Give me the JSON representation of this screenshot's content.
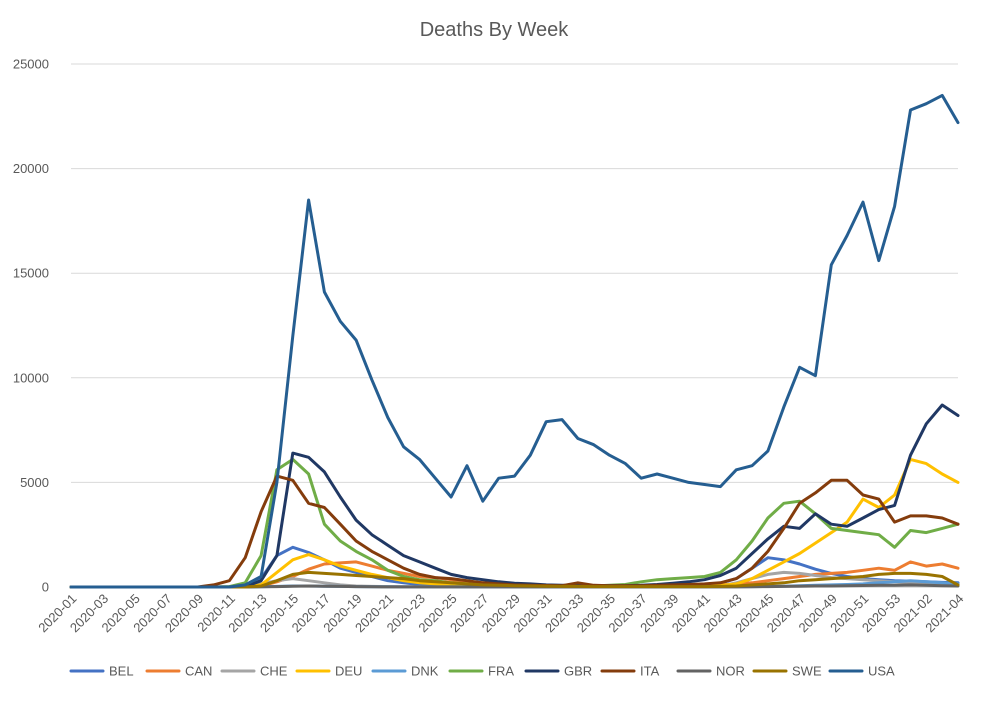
{
  "chart_data": {
    "type": "line",
    "title": "Deaths By Week",
    "xlabel": "",
    "ylabel": "",
    "ylim": [
      0,
      25000
    ],
    "yticks": [
      0,
      5000,
      10000,
      15000,
      20000,
      25000
    ],
    "ytick_labels": [
      "0",
      "5000",
      "10000",
      "15000",
      "20000",
      "25000"
    ],
    "grid": "horizontal",
    "legend": "bottom",
    "x": [
      "2020-01",
      "2020-02",
      "2020-03",
      "2020-04",
      "2020-05",
      "2020-06",
      "2020-07",
      "2020-08",
      "2020-09",
      "2020-10",
      "2020-11",
      "2020-12",
      "2020-13",
      "2020-14",
      "2020-15",
      "2020-16",
      "2020-17",
      "2020-18",
      "2020-19",
      "2020-20",
      "2020-21",
      "2020-22",
      "2020-23",
      "2020-24",
      "2020-25",
      "2020-26",
      "2020-27",
      "2020-28",
      "2020-29",
      "2020-30",
      "2020-31",
      "2020-32",
      "2020-33",
      "2020-34",
      "2020-35",
      "2020-36",
      "2020-37",
      "2020-38",
      "2020-39",
      "2020-40",
      "2020-41",
      "2020-42",
      "2020-43",
      "2020-44",
      "2020-45",
      "2020-46",
      "2020-47",
      "2020-48",
      "2020-49",
      "2020-50",
      "2020-51",
      "2020-52",
      "2020-53",
      "2021-01",
      "2021-02",
      "2021-03",
      "2021-04"
    ],
    "xtick_labels": [
      "2020-01",
      "2020-03",
      "2020-05",
      "2020-07",
      "2020-09",
      "2020-11",
      "2020-13",
      "2020-15",
      "2020-17",
      "2020-19",
      "2020-21",
      "2020-23",
      "2020-25",
      "2020-27",
      "2020-29",
      "2020-31",
      "2020-33",
      "2020-35",
      "2020-37",
      "2020-39",
      "2020-41",
      "2020-43",
      "2020-45",
      "2020-47",
      "2020-49",
      "2020-51",
      "2020-53",
      "2021-02",
      "2021-04"
    ],
    "series": [
      {
        "name": "BEL",
        "color": "#4472C4",
        "values": [
          0,
          0,
          0,
          0,
          0,
          0,
          0,
          0,
          0,
          0,
          10,
          50,
          400,
          1500,
          1900,
          1650,
          1300,
          900,
          700,
          500,
          300,
          200,
          120,
          80,
          50,
          30,
          20,
          15,
          10,
          10,
          10,
          10,
          10,
          10,
          10,
          10,
          15,
          20,
          30,
          60,
          100,
          180,
          400,
          900,
          1400,
          1300,
          1100,
          850,
          650,
          500,
          400,
          350,
          300,
          280,
          250,
          220,
          200
        ]
      },
      {
        "name": "CAN",
        "color": "#ED7D31",
        "values": [
          0,
          0,
          0,
          0,
          0,
          0,
          0,
          0,
          0,
          0,
          0,
          10,
          50,
          250,
          500,
          850,
          1100,
          1150,
          1200,
          1000,
          800,
          650,
          500,
          450,
          350,
          250,
          200,
          150,
          100,
          80,
          60,
          50,
          40,
          40,
          40,
          40,
          40,
          40,
          50,
          60,
          80,
          100,
          150,
          200,
          300,
          400,
          500,
          600,
          650,
          700,
          800,
          900,
          800,
          1200,
          1000,
          1100,
          900
        ]
      },
      {
        "name": "CHE",
        "color": "#A5A5A5",
        "values": [
          0,
          0,
          0,
          0,
          0,
          0,
          0,
          0,
          0,
          0,
          5,
          20,
          150,
          300,
          400,
          300,
          200,
          100,
          50,
          30,
          20,
          10,
          10,
          5,
          5,
          5,
          5,
          5,
          5,
          5,
          5,
          5,
          5,
          5,
          5,
          5,
          5,
          10,
          10,
          10,
          20,
          50,
          200,
          400,
          600,
          700,
          650,
          550,
          450,
          400,
          350,
          300,
          250,
          200,
          180,
          150,
          120
        ]
      },
      {
        "name": "DEU",
        "color": "#FFC000",
        "values": [
          0,
          0,
          0,
          0,
          0,
          0,
          0,
          0,
          0,
          0,
          0,
          10,
          100,
          700,
          1300,
          1550,
          1300,
          1000,
          800,
          600,
          450,
          300,
          200,
          150,
          100,
          80,
          60,
          50,
          40,
          30,
          30,
          30,
          30,
          30,
          30,
          30,
          30,
          30,
          30,
          40,
          50,
          70,
          150,
          400,
          800,
          1200,
          1600,
          2100,
          2600,
          3100,
          4200,
          3800,
          4400,
          6100,
          5900,
          5400,
          5000
        ]
      },
      {
        "name": "DNK",
        "color": "#5B9BD5",
        "values": [
          0,
          0,
          0,
          0,
          0,
          0,
          0,
          0,
          0,
          0,
          0,
          0,
          10,
          30,
          50,
          50,
          40,
          30,
          20,
          10,
          10,
          5,
          5,
          5,
          5,
          5,
          5,
          5,
          5,
          5,
          5,
          5,
          5,
          5,
          5,
          5,
          5,
          5,
          5,
          5,
          5,
          10,
          10,
          20,
          30,
          40,
          60,
          80,
          100,
          120,
          150,
          200,
          250,
          300,
          250,
          200,
          150
        ]
      },
      {
        "name": "FRA",
        "color": "#70AD47",
        "values": [
          0,
          0,
          0,
          0,
          0,
          0,
          0,
          0,
          0,
          0,
          20,
          200,
          1500,
          5600,
          6100,
          5400,
          3000,
          2200,
          1700,
          1300,
          800,
          500,
          350,
          300,
          200,
          150,
          100,
          70,
          50,
          40,
          30,
          30,
          30,
          50,
          80,
          120,
          250,
          350,
          400,
          450,
          500,
          700,
          1300,
          2200,
          3300,
          4000,
          4100,
          3500,
          2800,
          2700,
          2600,
          2500,
          1900,
          2700,
          2600,
          2800,
          3000
        ]
      },
      {
        "name": "GBR",
        "color": "#203864",
        "values": [
          0,
          0,
          0,
          0,
          0,
          0,
          0,
          0,
          0,
          0,
          0,
          10,
          300,
          1500,
          6400,
          6200,
          5500,
          4300,
          3200,
          2500,
          2000,
          1500,
          1200,
          900,
          600,
          450,
          350,
          250,
          180,
          150,
          100,
          80,
          70,
          60,
          60,
          60,
          80,
          120,
          180,
          250,
          350,
          550,
          900,
          1600,
          2300,
          2900,
          2800,
          3500,
          3000,
          2900,
          3300,
          3700,
          3900,
          6300,
          7800,
          8700,
          8200
        ]
      },
      {
        "name": "ITA",
        "color": "#843C0C",
        "values": [
          0,
          0,
          0,
          0,
          0,
          0,
          0,
          0,
          0,
          100,
          300,
          1400,
          3600,
          5300,
          5100,
          4000,
          3800,
          3000,
          2200,
          1700,
          1300,
          900,
          600,
          450,
          400,
          300,
          200,
          150,
          100,
          80,
          70,
          60,
          200,
          80,
          60,
          60,
          60,
          80,
          100,
          120,
          150,
          200,
          400,
          900,
          1700,
          2800,
          4000,
          4500,
          5100,
          5100,
          4400,
          4200,
          3100,
          3400,
          3400,
          3300,
          3000
        ]
      },
      {
        "name": "NOR",
        "color": "#636363",
        "values": [
          0,
          0,
          0,
          0,
          0,
          0,
          0,
          0,
          0,
          0,
          0,
          0,
          10,
          20,
          40,
          50,
          40,
          30,
          20,
          10,
          5,
          5,
          5,
          5,
          5,
          5,
          5,
          5,
          5,
          5,
          5,
          5,
          5,
          5,
          5,
          5,
          5,
          5,
          5,
          5,
          5,
          5,
          5,
          10,
          20,
          30,
          40,
          50,
          50,
          60,
          70,
          80,
          80,
          100,
          80,
          60,
          50
        ]
      },
      {
        "name": "SWE",
        "color": "#997300",
        "values": [
          0,
          0,
          0,
          0,
          0,
          0,
          0,
          0,
          0,
          0,
          0,
          0,
          50,
          300,
          600,
          700,
          650,
          600,
          550,
          500,
          450,
          400,
          300,
          250,
          200,
          150,
          100,
          80,
          60,
          50,
          40,
          30,
          30,
          20,
          20,
          20,
          20,
          20,
          20,
          20,
          20,
          30,
          50,
          100,
          150,
          200,
          300,
          350,
          400,
          450,
          500,
          600,
          650,
          650,
          600,
          500,
          100
        ]
      },
      {
        "name": "USA",
        "color": "#255E91",
        "values": [
          0,
          0,
          0,
          0,
          0,
          0,
          0,
          0,
          0,
          0,
          0,
          100,
          500,
          5000,
          12000,
          18500,
          14100,
          12700,
          11800,
          9900,
          8100,
          6700,
          6100,
          5200,
          4300,
          5800,
          4100,
          5200,
          5300,
          6300,
          7900,
          8000,
          7100,
          6800,
          6300,
          5900,
          5200,
          5400,
          5200,
          5000,
          4900,
          4800,
          5600,
          5800,
          6500,
          8600,
          10500,
          10100,
          15400,
          16800,
          18400,
          15600,
          18200,
          22800,
          23100,
          23500,
          22200
        ]
      }
    ]
  }
}
